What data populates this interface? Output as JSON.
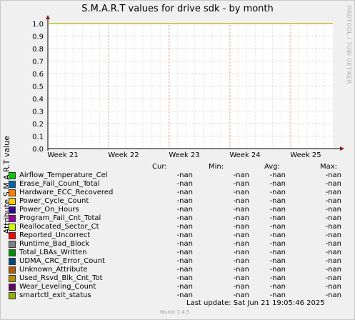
{
  "chart_data": {
    "type": "line",
    "title": "S.M.A.R.T values for drive sdk - by month",
    "ylabel": "Attribute S.M.A.R.T value",
    "xlabel": "",
    "ylim": [
      0,
      1.0
    ],
    "y_ticks": [
      "0.0",
      "0.1",
      "0.2",
      "0.3",
      "0.4",
      "0.5",
      "0.6",
      "0.7",
      "0.8",
      "0.9",
      "1.0"
    ],
    "x_ticks": [
      "Week 21",
      "Week 22",
      "Week 23",
      "Week 24",
      "Week 25"
    ],
    "grid": true,
    "series_line": {
      "value": 1.0,
      "color": "#b5b500"
    }
  },
  "side_credit": "RRDTOOL / TOBI OETIKER",
  "legend": {
    "headers": {
      "cur": "Cur:",
      "min": "Min:",
      "avg": "Avg:",
      "max": "Max:"
    },
    "rows": [
      {
        "label": "Airflow_Temperature_Cel",
        "color": "#00cc00",
        "cur": "-nan",
        "min": "-nan",
        "avg": "-nan",
        "max": "-nan"
      },
      {
        "label": "Erase_Fail_Count_Total",
        "color": "#0066b3",
        "cur": "-nan",
        "min": "-nan",
        "avg": "-nan",
        "max": "-nan"
      },
      {
        "label": "Hardware_ECC_Recovered",
        "color": "#ff8000",
        "cur": "-nan",
        "min": "-nan",
        "avg": "-nan",
        "max": "-nan"
      },
      {
        "label": "Power_Cycle_Count",
        "color": "#ffcc00",
        "cur": "-nan",
        "min": "-nan",
        "avg": "-nan",
        "max": "-nan"
      },
      {
        "label": "Power_On_Hours",
        "color": "#330099",
        "cur": "-nan",
        "min": "-nan",
        "avg": "-nan",
        "max": "-nan"
      },
      {
        "label": "Program_Fail_Cnt_Total",
        "color": "#990099",
        "cur": "-nan",
        "min": "-nan",
        "avg": "-nan",
        "max": "-nan"
      },
      {
        "label": "Reallocated_Sector_Ct",
        "color": "#ccff00",
        "cur": "-nan",
        "min": "-nan",
        "avg": "-nan",
        "max": "-nan"
      },
      {
        "label": "Reported_Uncorrect",
        "color": "#ff0000",
        "cur": "-nan",
        "min": "-nan",
        "avg": "-nan",
        "max": "-nan"
      },
      {
        "label": "Runtime_Bad_Block",
        "color": "#808080",
        "cur": "-nan",
        "min": "-nan",
        "avg": "-nan",
        "max": "-nan"
      },
      {
        "label": "Total_LBAs_Written",
        "color": "#008f00",
        "cur": "-nan",
        "min": "-nan",
        "avg": "-nan",
        "max": "-nan"
      },
      {
        "label": "UDMA_CRC_Error_Count",
        "color": "#00487d",
        "cur": "-nan",
        "min": "-nan",
        "avg": "-nan",
        "max": "-nan"
      },
      {
        "label": "Unknown_Attribute",
        "color": "#b35a00",
        "cur": "-nan",
        "min": "-nan",
        "avg": "-nan",
        "max": "-nan"
      },
      {
        "label": "Used_Rsvd_Blk_Cnt_Tot",
        "color": "#b38f00",
        "cur": "-nan",
        "min": "-nan",
        "avg": "-nan",
        "max": "-nan"
      },
      {
        "label": "Wear_Leveling_Count",
        "color": "#6b006b",
        "cur": "-nan",
        "min": "-nan",
        "avg": "-nan",
        "max": "-nan"
      },
      {
        "label": "smartctl_exit_status",
        "color": "#8fb300",
        "cur": "-nan",
        "min": "-nan",
        "avg": "-nan",
        "max": "-nan"
      }
    ]
  },
  "footer": {
    "last_update": "Last update:  Sat Jun 21 19:05:46 2025",
    "munin": "Munin 1.4.5"
  }
}
